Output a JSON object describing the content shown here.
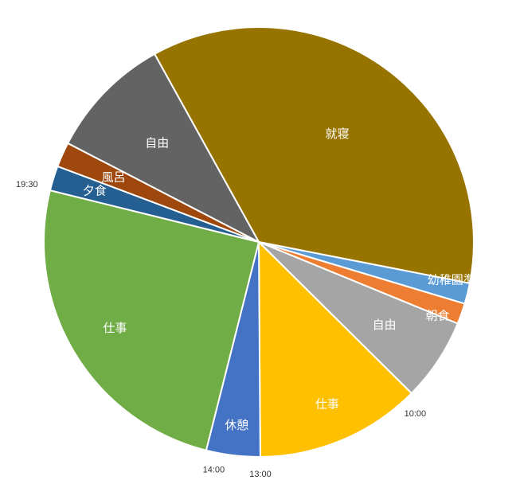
{
  "chart_data": {
    "type": "pie",
    "start_angle_deg": 331,
    "direction": "clockwise",
    "slices": [
      {
        "label": "就寝",
        "value": 116,
        "color": "#977400"
      },
      {
        "label": "幼稚園準備",
        "value": 5,
        "color": "#5b9bd5"
      },
      {
        "label": "朝食",
        "value": 5,
        "color": "#ed7d31"
      },
      {
        "label": "自由",
        "value": 20,
        "color": "#a5a5a5"
      },
      {
        "label": "仕事",
        "value": 40,
        "color": "#ffc000"
      },
      {
        "label": "休憩",
        "value": 13,
        "color": "#4472c4"
      },
      {
        "label": "仕事",
        "value": 80,
        "color": "#70ad47"
      },
      {
        "label": "夕食",
        "value": 6,
        "color": "#255e91"
      },
      {
        "label": "風呂",
        "value": 6,
        "color": "#9e480e"
      },
      {
        "label": "自由",
        "value": 30,
        "color": "#636363"
      }
    ],
    "time_marks": [
      "10:00",
      "13:00",
      "14:00",
      "19:30"
    ]
  }
}
